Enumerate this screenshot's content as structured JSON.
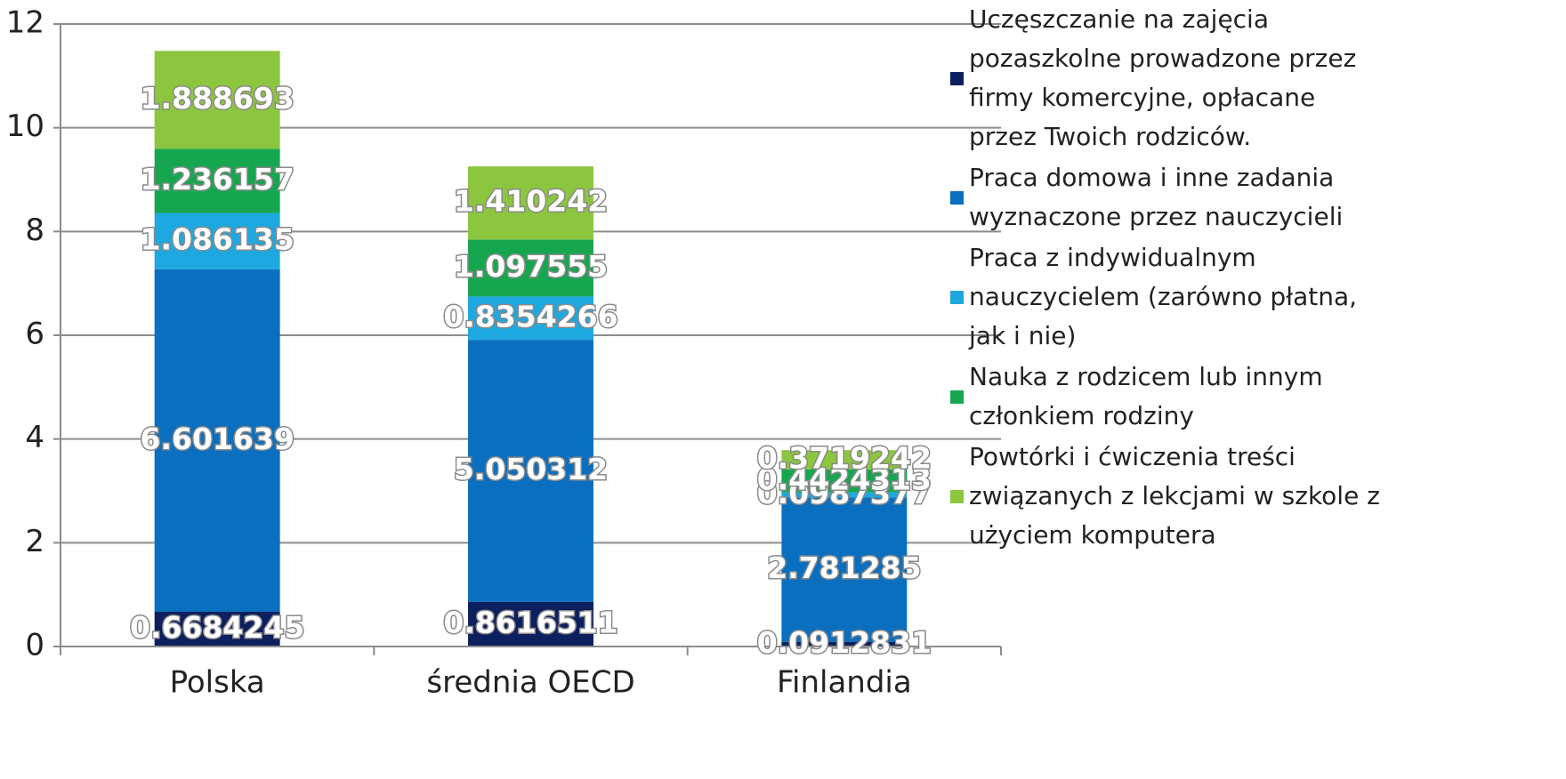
{
  "chart_data": {
    "type": "bar",
    "stacked": true,
    "grid": true,
    "categories": [
      "Polska",
      "średnia OECD",
      "Finlandia"
    ],
    "series": [
      {
        "name": "Uczęszczanie na zajęcia pozaszkolne prowadzone przez firmy komercyjne, opłacane przez Twoich rodziców.",
        "color": "#0c1f5e",
        "values": [
          0.6684245,
          0.8616511,
          0.0912831
        ]
      },
      {
        "name": "Praca domowa i inne zadania wyznaczone przez nauczycieli",
        "color": "#0b6fbf",
        "values": [
          6.601639,
          5.050312,
          2.781285
        ]
      },
      {
        "name": "Praca z indywidualnym nauczycielem (zarówno płatna, jak i nie)",
        "color": "#1ea8e0",
        "values": [
          1.086135,
          0.8354266,
          0.0987377
        ]
      },
      {
        "name": "Nauka z rodzicem lub innym członkiem rodziny",
        "color": "#17a650",
        "values": [
          1.236157,
          1.097555,
          0.4424313
        ]
      },
      {
        "name": "Powtórki i ćwiczenia treści związanych z lekcjami w szkole z użyciem komputera",
        "color": "#8cc63e",
        "values": [
          1.888693,
          1.410242,
          0.3719242
        ]
      }
    ],
    "ylim": [
      0,
      12
    ],
    "yticks": [
      0,
      2,
      4,
      6,
      8,
      10,
      12
    ]
  }
}
